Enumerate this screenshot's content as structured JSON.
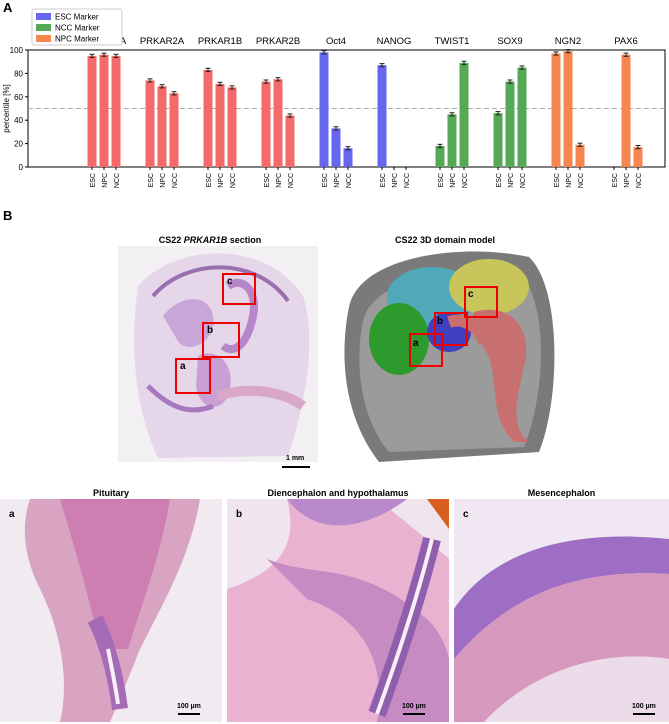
{
  "panels": {
    "a": "A",
    "b": "B"
  },
  "chart_data": {
    "type": "bar",
    "ylabel": "percentile [%]",
    "ylim": [
      0,
      100
    ],
    "yticks": [
      0,
      20,
      40,
      60,
      80,
      100
    ],
    "threshold": 50,
    "legend": {
      "placement": "top-left",
      "entries": [
        {
          "label": "ESC Marker",
          "color": "#6666ee"
        },
        {
          "label": "NCC Marker",
          "color": "#55a955"
        },
        {
          "label": "NPC Marker",
          "color": "#f5864f"
        }
      ]
    },
    "groups": [
      {
        "gene": "PRKAR1A",
        "color": "#f46a6a",
        "cell_types": [
          "ESC",
          "NPC",
          "NCC"
        ],
        "values": [
          95,
          96,
          95
        ]
      },
      {
        "gene": "PRKAR2A",
        "color": "#f46a6a",
        "cell_types": [
          "ESC",
          "NPC",
          "NCC"
        ],
        "values": [
          74,
          69,
          63
        ]
      },
      {
        "gene": "PRKAR1B",
        "color": "#f46a6a",
        "cell_types": [
          "ESC",
          "NPC",
          "NCC"
        ],
        "values": [
          83,
          71,
          68
        ]
      },
      {
        "gene": "PRKAR2B",
        "color": "#f46a6a",
        "cell_types": [
          "ESC",
          "NPC",
          "NCC"
        ],
        "values": [
          73,
          75,
          44
        ]
      },
      {
        "gene": "Oct4",
        "color": "#6666ee",
        "cell_types": [
          "ESC",
          "NPC",
          "NCC"
        ],
        "values": [
          98,
          33,
          16
        ]
      },
      {
        "gene": "NANOG",
        "color": "#6666ee",
        "cell_types": [
          "ESC",
          "NPC",
          "NCC"
        ],
        "values": [
          87,
          0,
          0
        ]
      },
      {
        "gene": "TWIST1",
        "color": "#55a955",
        "cell_types": [
          "ESC",
          "NPC",
          "NCC"
        ],
        "values": [
          18,
          45,
          89
        ]
      },
      {
        "gene": "SOX9",
        "color": "#55a955",
        "cell_types": [
          "ESC",
          "NPC",
          "NCC"
        ],
        "values": [
          46,
          73,
          85
        ]
      },
      {
        "gene": "NGN2",
        "color": "#f5864f",
        "cell_types": [
          "ESC",
          "NPC",
          "NCC"
        ],
        "values": [
          97,
          99,
          19
        ]
      },
      {
        "gene": "PAX6",
        "color": "#f5864f",
        "cell_types": [
          "ESC",
          "NPC",
          "NCC"
        ],
        "values": [
          0,
          96,
          17
        ]
      }
    ]
  },
  "figure_b": {
    "section_title_prefix": "CS22 ",
    "section_title_gene": "PRKAR1B",
    "section_title_suffix": " section",
    "model_title": "CS22 3D domain model",
    "box_labels": [
      "a",
      "b",
      "c"
    ],
    "section_scale": "1 mm",
    "tiles": [
      {
        "letter": "a",
        "title": "Pituitary",
        "scale": "100 µm"
      },
      {
        "letter": "b",
        "title": "Diencephalon and hypothalamus",
        "scale": "100 µm"
      },
      {
        "letter": "c",
        "title": "Mesencephalon",
        "scale": "100 µm"
      }
    ]
  }
}
